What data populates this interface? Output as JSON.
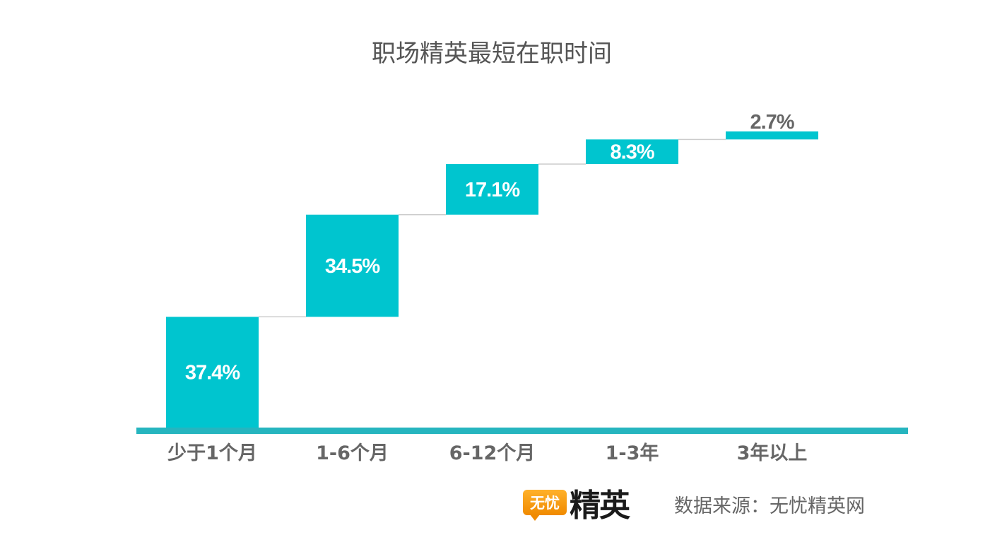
{
  "colors": {
    "bar": "#00c5cf",
    "axis": "#26b5bf",
    "connector": "#cccccc",
    "label_inside": "#ffffff",
    "label_outside": "#666666",
    "title": "#555555",
    "category": "#666666",
    "logo_orange": "#f39800"
  },
  "chart_data": {
    "type": "bar",
    "subtype": "waterfall",
    "title": "职场精英最短在职时间",
    "categories": [
      "少于1个月",
      "1-6个月",
      "6-12个月",
      "1-3年",
      "3年以上"
    ],
    "values": [
      37.4,
      34.5,
      17.1,
      8.3,
      2.7
    ],
    "value_labels": [
      "37.4%",
      "34.5%",
      "17.1%",
      "8.3%",
      "2.7%"
    ],
    "unit": "%",
    "grid": false,
    "legend": "none"
  },
  "footer": {
    "logo_mark": "无忧",
    "logo_word": "精英",
    "source": "数据来源：无忧精英网"
  }
}
